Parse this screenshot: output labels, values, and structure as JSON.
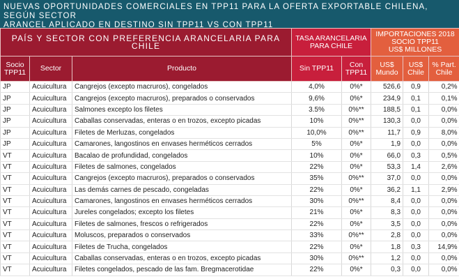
{
  "title": {
    "line1": "NUEVAS OPORTUNIDADES COMERCIALES EN TPP11 PARA LA OFERTA EXPORTABLE CHILENA, SEGÚN SECTOR",
    "line2": "ARANCEL APLICADO EN DESTINO SIN TPP11 VS CON TPP11"
  },
  "header": {
    "group_main": "PAÍS Y SECTOR CON PREFERENCIA ARANCELARIA PARA CHILE",
    "group_tasa": "TASA ARANCELARIA PARA CHILE",
    "group_imp": [
      "IMPORTACIONES 2018",
      "SOCIO TPP11",
      "US$ MILLONES"
    ],
    "columns": [
      "Socio TPP11",
      "Sector",
      "Producto",
      "Sin TPP11",
      "Con TPP11",
      "US$ Mundo",
      "US$ Chile",
      "% Part. Chile"
    ]
  },
  "colors": {
    "title_bg": "#17596c",
    "header_main": "#9b1b30",
    "header_tasa": "#c81f3c",
    "header_imp": "#e35f3e"
  },
  "rows": [
    [
      "JP",
      "Acuicultura",
      "Cangrejos (excepto macruros), congelados",
      "4,0%",
      "0%*",
      "526,6",
      "0,9",
      "0,2%"
    ],
    [
      "JP",
      "Acuicultura",
      "Cangrejos (excepto macruros), preparados o conservados",
      "9,6%",
      "0%*",
      "234,9",
      "0,1",
      "0,1%"
    ],
    [
      "JP",
      "Acuicultura",
      "Salmones excepto los filetes",
      "3.5%",
      "0%**",
      "188,5",
      "0,1",
      "0,0%"
    ],
    [
      "JP",
      "Acuicultura",
      "Caballas conservadas, enteras o en trozos, excepto picadas",
      "10%",
      "0%**",
      "130,3",
      "0,0",
      "0,0%"
    ],
    [
      "JP",
      "Acuicultura",
      "Filetes de Merluzas, congelados",
      "10,0%",
      "0%**",
      "11,7",
      "0,9",
      "8,0%"
    ],
    [
      "JP",
      "Acuicultura",
      "Camarones, langostinos en envases herméticos cerrados",
      "5%",
      "0%*",
      "1,9",
      "0,0",
      "0,0%"
    ],
    [
      "VT",
      "Acuicultura",
      "Bacalao de profundidad, congelados",
      "10%",
      "0%*",
      "66,0",
      "0,3",
      "0,5%"
    ],
    [
      "VT",
      "Acuicultura",
      "Filetes de salmones, congelados",
      "22%",
      "0%*",
      "53,3",
      "1,4",
      "2,6%"
    ],
    [
      "VT",
      "Acuicultura",
      "Cangrejos (excepto macruros), preparados o conservados",
      "35%",
      "0%**",
      "37,0",
      "0,0",
      "0,0%"
    ],
    [
      "VT",
      "Acuicultura",
      "Las demás carnes de pescado, congeladas",
      "22%",
      "0%*",
      "36,2",
      "1,1",
      "2,9%"
    ],
    [
      "VT",
      "Acuicultura",
      "Camarones, langostinos en envases herméticos cerrados",
      "30%",
      "0%**",
      "8,4",
      "0,0",
      "0,0%"
    ],
    [
      "VT",
      "Acuicultura",
      "Jureles congelados; excepto los filetes",
      "21%",
      "0%*",
      "8,3",
      "0,0",
      "0,0%"
    ],
    [
      "VT",
      "Acuicultura",
      "Filetes de salmones, frescos o refrigerados",
      "22%",
      "0%*",
      "3,5",
      "0,0",
      "0,0%"
    ],
    [
      "VT",
      "Acuicultura",
      "Moluscos, preparados o conservados",
      "33%",
      "0%**",
      "2,8",
      "0,0",
      "0,0%"
    ],
    [
      "VT",
      "Acuicultura",
      "Filetes de Trucha, congelados",
      "22%",
      "0%*",
      "1,8",
      "0,3",
      "14,9%"
    ],
    [
      "VT",
      "Acuicultura",
      "Caballas conservadas, enteras o en trozos, excepto picadas",
      "30%",
      "0%**",
      "1,2",
      "0,0",
      "0,0%"
    ],
    [
      "VT",
      "Acuicultura",
      "Filetes congelados, pescado de las fam. Bregmacerotidae",
      "22%",
      "0%*",
      "0,3",
      "0,0",
      "0,0%"
    ]
  ]
}
